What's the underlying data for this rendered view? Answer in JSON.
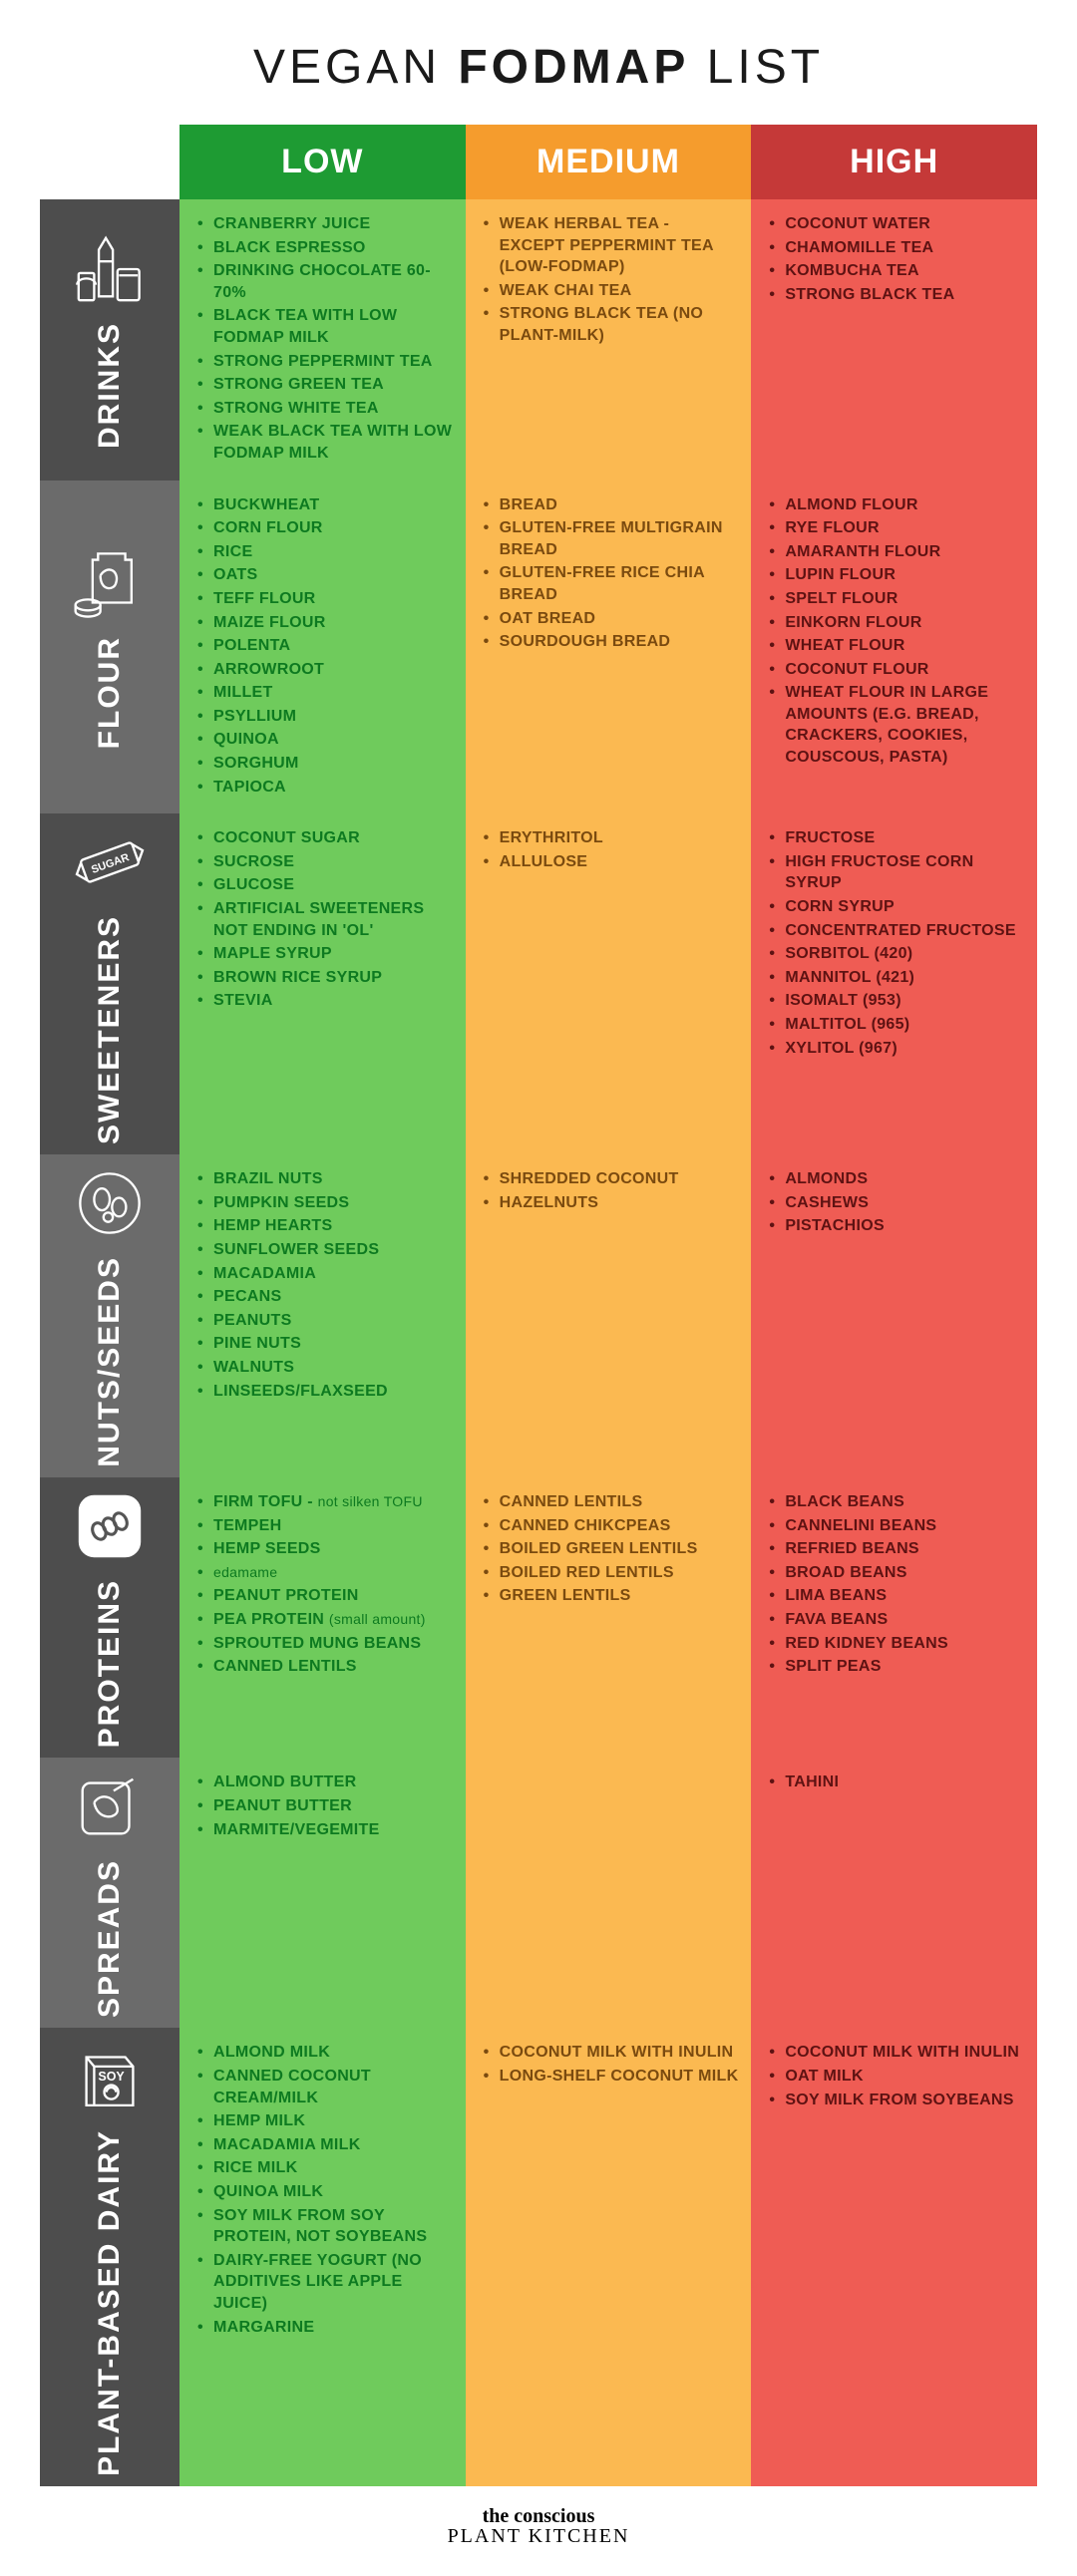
{
  "title_parts": [
    "VEGAN ",
    "FODMAP",
    " LIST"
  ],
  "headers": {
    "low": "LOW",
    "medium": "MEDIUM",
    "high": "HIGH"
  },
  "colors": {
    "header_low": "#1e9b33",
    "header_med": "#f59c2d",
    "header_high": "#c53938",
    "cell_low": "#6fcb5c",
    "cell_med": "#fbb951",
    "cell_high": "#ef5c54",
    "text_low": "#0d7a20",
    "text_med": "#7a4a0f",
    "text_high": "#5e1212",
    "cat_shades": [
      "#4d4d4d",
      "#6b6b6b",
      "#4d4d4d",
      "#6b6b6b",
      "#4d4d4d",
      "#6b6b6b",
      "#4d4d4d"
    ]
  },
  "categories": [
    {
      "key": "drinks",
      "label": "DRINKS",
      "icon": "drinks-icon",
      "low": [
        "CRANBERRY JUICE",
        "BLACK ESPRESSO",
        "DRINKING CHOCOLATE 60-70%",
        "BLACK TEA WITH LOW FODMAP MILK",
        "STRONG PEPPERMINT TEA",
        "STRONG GREEN TEA",
        "STRONG WHITE TEA",
        "WEAK BLACK TEA WITH LOW FODMAP MILK"
      ],
      "medium": [
        "WEAK HERBAL TEA - EXCEPT PEPPERMINT TEA (LOW-FODMAP)",
        "WEAK CHAI TEA",
        "STRONG BLACK TEA (NO PLANT-MILK)"
      ],
      "high": [
        "COCONUT WATER",
        "CHAMOMILLE TEA",
        "KOMBUCHA TEA",
        "STRONG BLACK TEA"
      ]
    },
    {
      "key": "flour",
      "label": "FLOUR",
      "icon": "flour-icon",
      "low": [
        "BUCKWHEAT",
        "CORN FLOUR",
        "RICE",
        "OATS",
        "TEFF FLOUR",
        "MAIZE FLOUR",
        "POLENTA",
        "ARROWROOT",
        "MILLET",
        "PSYLLIUM",
        "QUINOA",
        "SORGHUM",
        "TAPIOCA"
      ],
      "medium": [
        "BREAD",
        "GLUTEN-FREE MULTIGRAIN BREAD",
        "GLUTEN-FREE RICE CHIA BREAD",
        "OAT BREAD",
        "SOURDOUGH BREAD"
      ],
      "high": [
        "ALMOND FLOUR",
        "RYE FLOUR",
        "AMARANTH FLOUR",
        "LUPIN FLOUR",
        "SPELT FLOUR",
        "EINKORN FLOUR",
        "WHEAT FLOUR",
        "COCONUT FLOUR",
        "WHEAT FLOUR IN LARGE AMOUNTS (E.G. BREAD, CRACKERS, COOKIES, COUSCOUS, PASTA)"
      ]
    },
    {
      "key": "sweeteners",
      "label": "SWEETENERS",
      "icon": "sugar-icon",
      "low": [
        "COCONUT SUGAR",
        "SUCROSE",
        "GLUCOSE",
        "ARTIFICIAL SWEETENERS NOT ENDING IN 'OL'",
        "MAPLE SYRUP",
        "BROWN RICE SYRUP",
        "STEVIA"
      ],
      "medium": [
        "ERYTHRITOL",
        "ALLULOSE"
      ],
      "high": [
        "FRUCTOSE",
        "HIGH FRUCTOSE CORN SYRUP",
        "CORN SYRUP",
        "CONCENTRATED FRUCTOSE",
        "SORBITOL (420)",
        "MANNITOL (421)",
        "ISOMALT (953)",
        "MALTITOL (965)",
        "XYLITOL (967)"
      ]
    },
    {
      "key": "nuts",
      "label": "NUTS/SEEDS",
      "icon": "nuts-icon",
      "low": [
        "BRAZIL NUTS",
        "PUMPKIN SEEDS",
        "HEMP HEARTS",
        "SUNFLOWER SEEDS",
        "MACADAMIA",
        "PECANS",
        "PEANUTS",
        "PINE NUTS",
        "WALNUTS",
        "LINSEEDS/FLAXSEED"
      ],
      "medium": [
        "SHREDDED COCONUT",
        "HAZELNUTS"
      ],
      "high": [
        "ALMONDS",
        "CASHEWS",
        "PISTACHIOS"
      ]
    },
    {
      "key": "proteins",
      "label": "PROTEINS",
      "icon": "proteins-icon",
      "low": [
        "FIRM TOFU - |not silken TOFU",
        "TEMPEH",
        "HEMP SEEDS",
        "|edamame",
        "PEANUT PROTEIN",
        "PEA PROTEIN |(small amount)",
        "SPROUTED MUNG BEANS",
        "CANNED LENTILS"
      ],
      "medium": [
        "CANNED LENTILS",
        "CANNED CHIKCPEAS",
        "BOILED GREEN LENTILS",
        "BOILED RED LENTILS",
        "GREEN LENTILS"
      ],
      "high": [
        "BLACK BEANS",
        "CANNELINI BEANS",
        "REFRIED BEANS",
        "BROAD BEANS",
        "LIMA BEANS",
        "FAVA BEANS",
        "RED KIDNEY BEANS",
        "SPLIT PEAS"
      ]
    },
    {
      "key": "spreads",
      "label": "SPREADS",
      "icon": "spreads-icon",
      "low": [
        "ALMOND BUTTER",
        "PEANUT BUTTER",
        "MARMITE/VEGEMITE"
      ],
      "medium": [],
      "high": [
        "TAHINI"
      ]
    },
    {
      "key": "dairy",
      "label": "PLANT-BASED DAIRY",
      "icon": "dairy-icon",
      "low": [
        "ALMOND MILK",
        "CANNED COCONUT CREAM/MILK",
        "HEMP MILK",
        "MACADAMIA MILK",
        "RICE MILK",
        "QUINOA MILK",
        "SOY MILK FROM SOY PROTEIN, NOT SOYBEANS",
        "DAIRY-FREE YOGURT (NO ADDITIVES LIKE APPLE JUICE)",
        "MARGARINE"
      ],
      "medium": [
        "COCONUT MILK WITH INULIN",
        "LONG-SHELF COCONUT MILK"
      ],
      "high": [
        "COCONUT MILK WITH INULIN",
        "OAT MILK",
        "SOY MILK FROM SOYBEANS"
      ]
    }
  ],
  "footer": {
    "line1": "the conscious",
    "line2": "PLANT KITCHEN"
  }
}
